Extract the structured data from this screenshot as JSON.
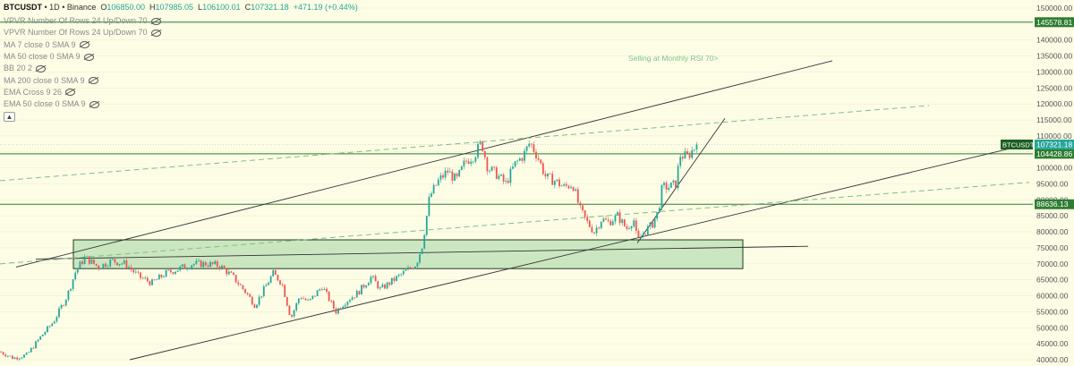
{
  "header": {
    "symbol": "BTCUSDT",
    "interval": "1D",
    "exchange": "Binance",
    "open_label": "O",
    "open": "106850.00",
    "high_label": "H",
    "high": "107985.05",
    "low_label": "L",
    "low": "106100.01",
    "close_label": "C",
    "close": "107321.18",
    "change": "+471.19 (+0.44%)"
  },
  "indicators": [
    "VPVR Number Of Rows 24 Up/Down 70",
    "VPVR Number Of Rows 24 Up/Down 70",
    "MA 7 close 0 SMA 9",
    "MA 50 close 0 SMA 9",
    "BB 20 2",
    "MA 200 close 0 SMA 9",
    "EMA Cross 9 26",
    "EMA 50 close 0 SMA 9"
  ],
  "colors": {
    "bg": "#fdfde6",
    "up": "#26a69a",
    "down": "#ef5350",
    "level": "#2e7d32",
    "label": "#26a69a",
    "zone": "#b9dfb4"
  },
  "chart_data": {
    "type": "candlestick",
    "symbol": "BTCUSDT",
    "interval": "1D",
    "ylim": [
      40000,
      150000
    ],
    "y_ticks": [
      40000,
      45000,
      50000,
      55000,
      60000,
      65000,
      70000,
      75000,
      80000,
      85000,
      90000,
      95000,
      100000,
      105000,
      110000,
      115000,
      120000,
      125000,
      130000,
      135000,
      140000,
      145000,
      150000
    ],
    "y_tick_labels": [
      "40000.00",
      "45000.00",
      "50000.00",
      "55000.00",
      "60000.00",
      "65000.00",
      "70000.00",
      "75000.00",
      "80000.00",
      "85000.00",
      "90000.00",
      "95000.00",
      "100000.00",
      "105000.00",
      "110000.00",
      "115000.00",
      "120000.00",
      "125000.00",
      "130000.00",
      "135000.00",
      "140000.00",
      "145000.00",
      "150000.00"
    ],
    "price_path": [
      [
        0,
        42500
      ],
      [
        15,
        40500
      ],
      [
        30,
        41500
      ],
      [
        45,
        47000
      ],
      [
        60,
        52000
      ],
      [
        75,
        60000
      ],
      [
        85,
        68000
      ],
      [
        95,
        72000
      ],
      [
        110,
        69000
      ],
      [
        125,
        71000
      ],
      [
        140,
        70000
      ],
      [
        155,
        66000
      ],
      [
        170,
        64000
      ],
      [
        185,
        67000
      ],
      [
        200,
        68500
      ],
      [
        215,
        70000
      ],
      [
        230,
        70000
      ],
      [
        245,
        69500
      ],
      [
        260,
        66000
      ],
      [
        275,
        61000
      ],
      [
        285,
        57000
      ],
      [
        295,
        62000
      ],
      [
        305,
        67000
      ],
      [
        315,
        64000
      ],
      [
        325,
        53000
      ],
      [
        335,
        60000
      ],
      [
        345,
        58000
      ],
      [
        360,
        63000
      ],
      [
        375,
        55000
      ],
      [
        385,
        58000
      ],
      [
        400,
        61000
      ],
      [
        415,
        66000
      ],
      [
        425,
        62000
      ],
      [
        440,
        65000
      ],
      [
        455,
        68000
      ],
      [
        465,
        70000
      ],
      [
        472,
        76000
      ],
      [
        480,
        91000
      ],
      [
        490,
        96000
      ],
      [
        500,
        99000
      ],
      [
        510,
        96000
      ],
      [
        520,
        102000
      ],
      [
        530,
        104000
      ],
      [
        538,
        108000
      ],
      [
        545,
        100000
      ],
      [
        555,
        98000
      ],
      [
        565,
        95000
      ],
      [
        575,
        101000
      ],
      [
        585,
        104000
      ],
      [
        592,
        108000
      ],
      [
        600,
        104000
      ],
      [
        610,
        97000
      ],
      [
        620,
        96000
      ],
      [
        630,
        94000
      ],
      [
        640,
        95000
      ],
      [
        648,
        87000
      ],
      [
        656,
        83000
      ],
      [
        664,
        80000
      ],
      [
        672,
        84000
      ],
      [
        680,
        83000
      ],
      [
        690,
        85000
      ],
      [
        700,
        81000
      ],
      [
        708,
        84000
      ],
      [
        712,
        77000
      ],
      [
        720,
        80000
      ],
      [
        728,
        82000
      ],
      [
        735,
        86000
      ],
      [
        740,
        94000
      ],
      [
        748,
        94000
      ],
      [
        755,
        95000
      ],
      [
        760,
        104000
      ],
      [
        768,
        103500
      ],
      [
        775,
        106000
      ],
      [
        779,
        107321
      ]
    ],
    "horizontal_levels": [
      {
        "price": 145578.81,
        "label": "145578.81"
      },
      {
        "price": 104428.86,
        "label": "104428.86"
      },
      {
        "price": 88636.13,
        "label": "88636.13"
      }
    ],
    "last_price": {
      "symbol": "BTCUSDT",
      "price": 107321.18,
      "label": "107321.18"
    },
    "zone": {
      "price_top": 77500,
      "price_bottom": 68500
    },
    "annotation": {
      "text": "Selling at Monthly RSI 70>"
    },
    "trendlines": [
      {
        "style": "solid",
        "from": [
          18,
          69000
        ],
        "to": [
          930,
          133500
        ]
      },
      {
        "style": "solid",
        "from": [
          145,
          40000
        ],
        "to": [
          1135,
          106500
        ]
      },
      {
        "style": "solid",
        "from": [
          40,
          71500
        ],
        "to": [
          903,
          75500
        ]
      },
      {
        "style": "solid",
        "from": [
          712,
          76500
        ],
        "to": [
          810,
          115500
        ]
      },
      {
        "style": "dashed",
        "from": [
          0,
          96000
        ],
        "to": [
          1038,
          119500
        ]
      },
      {
        "style": "dashed",
        "from": [
          0,
          70000
        ],
        "to": [
          1150,
          95500
        ]
      }
    ]
  }
}
